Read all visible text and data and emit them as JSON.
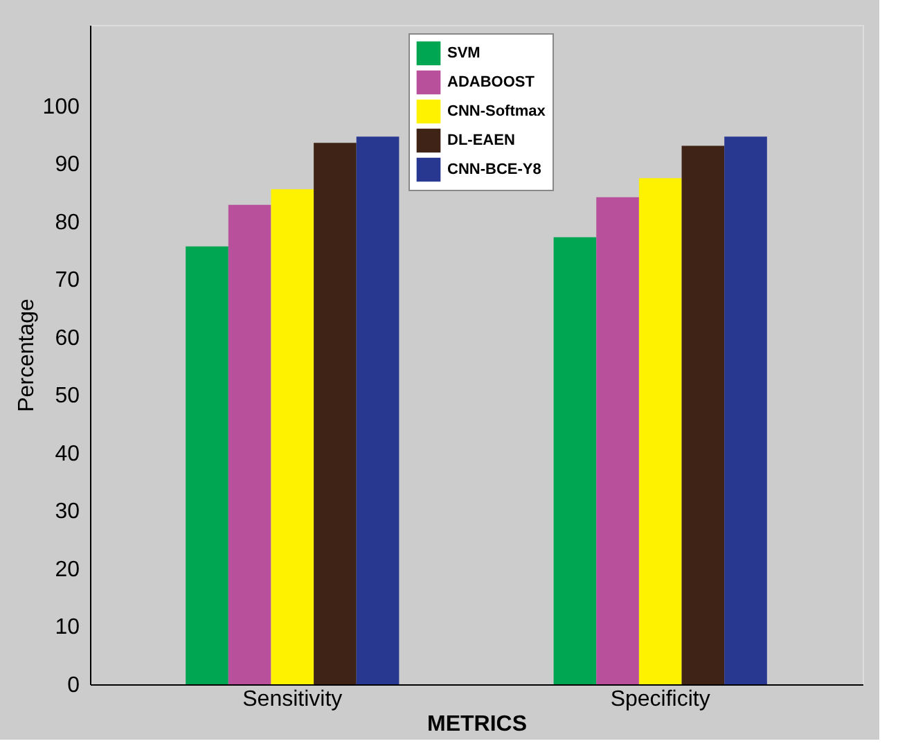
{
  "chart_data": {
    "type": "bar",
    "xlabel": "METRICS",
    "ylabel": "Percentage",
    "categories": [
      "Sensitivity",
      "Specificity"
    ],
    "series": [
      {
        "name": "SVM",
        "color": "#00a651",
        "values": [
          75.7,
          77.3
        ]
      },
      {
        "name": "ADABOOST",
        "color": "#b8509b",
        "values": [
          82.9,
          84.2
        ]
      },
      {
        "name": "CNN-Softmax",
        "color": "#fff200",
        "values": [
          85.6,
          87.5
        ]
      },
      {
        "name": "DL-EAEN",
        "color": "#3e2316",
        "values": [
          93.6,
          93.1
        ]
      },
      {
        "name": "CNN-BCE-Y8",
        "color": "#283891",
        "values": [
          94.7,
          94.7
        ]
      }
    ],
    "ylim": [
      0,
      114
    ],
    "yticks": [
      0,
      10,
      20,
      30,
      40,
      50,
      60,
      70,
      80,
      90,
      100
    ],
    "grid": false,
    "legend": "top"
  }
}
